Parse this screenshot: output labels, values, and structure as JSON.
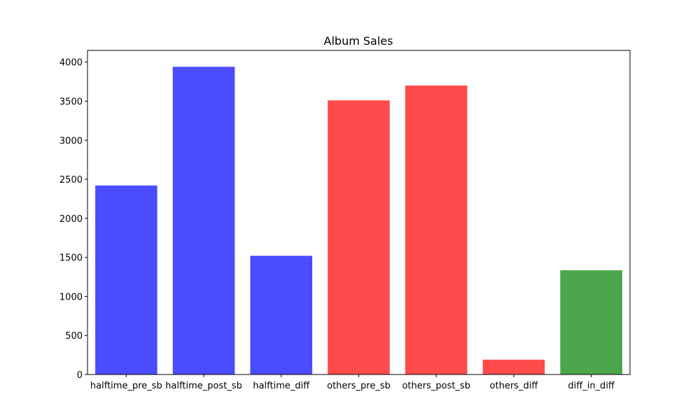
{
  "chart_data": {
    "type": "bar",
    "title": "Album Sales",
    "xlabel": "",
    "ylabel": "",
    "ylim": [
      0,
      4150
    ],
    "yticks": [
      0,
      500,
      1000,
      1500,
      2000,
      2500,
      3000,
      3500,
      4000
    ],
    "categories": [
      "halftime_pre_sb",
      "halftime_post_sb",
      "halftime_diff",
      "others_pre_sb",
      "others_post_sb",
      "others_diff",
      "diff_in_diff"
    ],
    "values": [
      2420,
      3940,
      1520,
      3510,
      3700,
      190,
      1335
    ],
    "colors": [
      "#4b4bff",
      "#4b4bff",
      "#4b4bff",
      "#ff4b4b",
      "#ff4b4b",
      "#ff4b4b",
      "#4ca64c"
    ],
    "grid": false,
    "legend": "none"
  }
}
